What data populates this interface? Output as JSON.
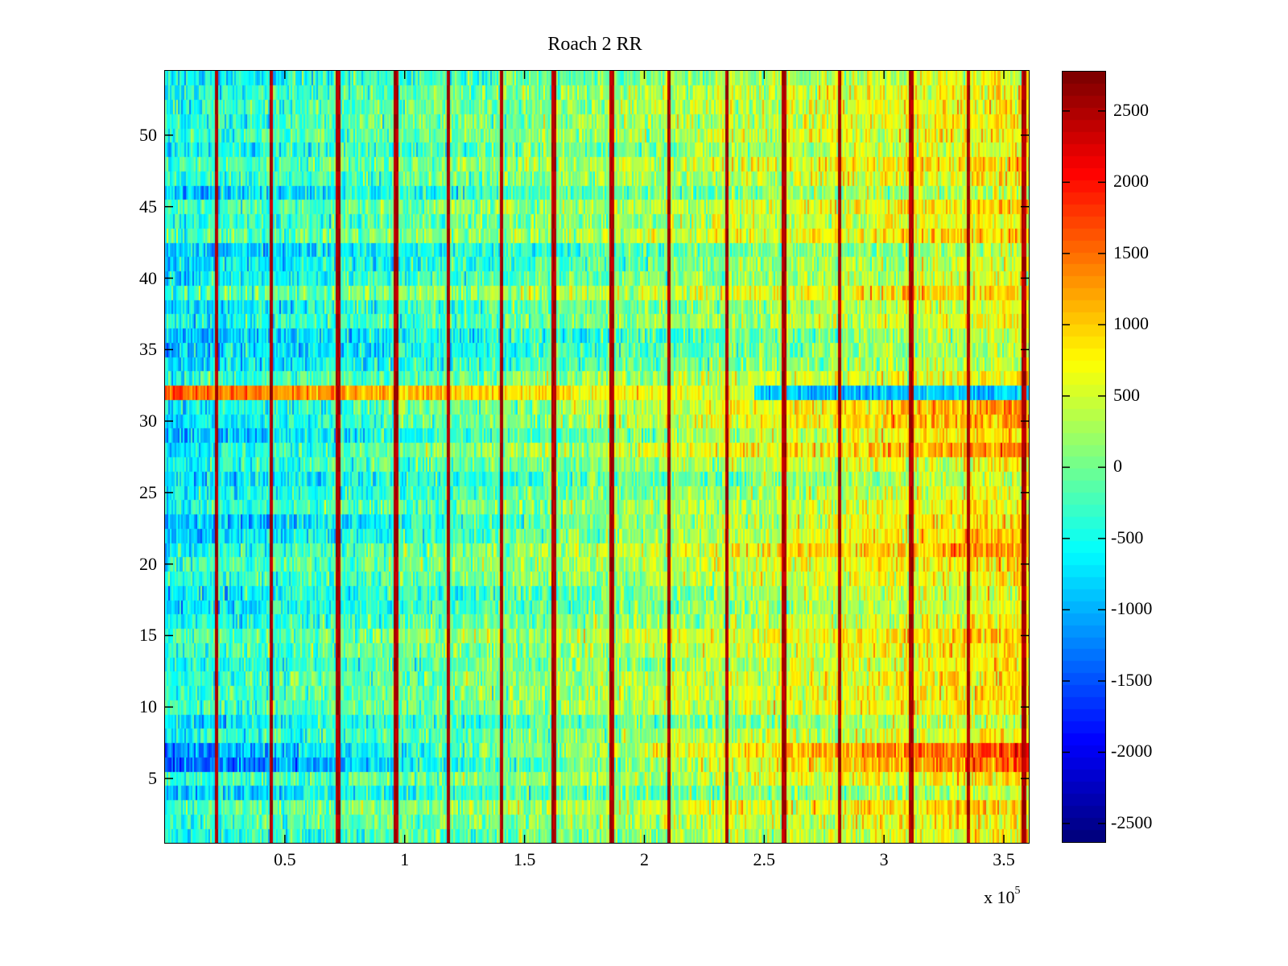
{
  "chart_data": {
    "type": "heatmap",
    "title": "Roach 2 RR",
    "xlabel": "",
    "ylabel": "",
    "x_exponent_label": "x 10",
    "x_exponent_power": "5",
    "xlim": [
      0,
      360400
    ],
    "ylim": [
      0.5,
      54.5
    ],
    "rows": 54,
    "x_ticks": [
      {
        "value": 50000,
        "label": "0.5"
      },
      {
        "value": 100000,
        "label": "1"
      },
      {
        "value": 150000,
        "label": "1.5"
      },
      {
        "value": 200000,
        "label": "2"
      },
      {
        "value": 250000,
        "label": "2.5"
      },
      {
        "value": 300000,
        "label": "3"
      },
      {
        "value": 350000,
        "label": "3.5"
      }
    ],
    "y_ticks": [
      {
        "value": 5,
        "label": "5"
      },
      {
        "value": 10,
        "label": "10"
      },
      {
        "value": 15,
        "label": "15"
      },
      {
        "value": 20,
        "label": "20"
      },
      {
        "value": 25,
        "label": "25"
      },
      {
        "value": 30,
        "label": "30"
      },
      {
        "value": 35,
        "label": "35"
      },
      {
        "value": 40,
        "label": "40"
      },
      {
        "value": 45,
        "label": "45"
      },
      {
        "value": 50,
        "label": "50"
      }
    ],
    "colormap": "jet",
    "clim": [
      -2630,
      2776
    ],
    "colorbar": {
      "location": "right",
      "ticks": [
        {
          "value": 2500,
          "label": "2500"
        },
        {
          "value": 2000,
          "label": "2000"
        },
        {
          "value": 1500,
          "label": "1500"
        },
        {
          "value": 1000,
          "label": "1000"
        },
        {
          "value": 500,
          "label": "500"
        },
        {
          "value": 0,
          "label": "0"
        },
        {
          "value": -500,
          "label": "-500"
        },
        {
          "value": -1000,
          "label": "-1000"
        },
        {
          "value": -1500,
          "label": "-1500"
        },
        {
          "value": -2000,
          "label": "-2000"
        },
        {
          "value": -2500,
          "label": "-2500"
        }
      ]
    },
    "description_of_values": {
      "trend_left_to_right": {
        "start": -500,
        "end": 800
      },
      "row_offsets": [
        {
          "rows": [
            1,
            2
          ],
          "offset": -200
        },
        {
          "rows": [
            6,
            7
          ],
          "offset": -900,
          "right_end_offset": 900
        },
        {
          "rows": [
            21,
            22,
            23,
            28,
            29,
            30,
            31
          ],
          "offset": -300,
          "right_end_offset": 400
        },
        {
          "rows": [
            32
          ],
          "offset_left": 1400,
          "offset_right": -900
        },
        {
          "rows": [
            34,
            35,
            36
          ],
          "offset": -400
        },
        {
          "rows": [
            41,
            42
          ],
          "offset": -300
        }
      ],
      "spike_columns_x": [
        21000,
        44000,
        72000,
        96000,
        118000,
        140000,
        162000,
        186000,
        210000,
        234000,
        258000,
        281000,
        311000,
        335000,
        358000
      ],
      "spike_value": 2700
    }
  }
}
